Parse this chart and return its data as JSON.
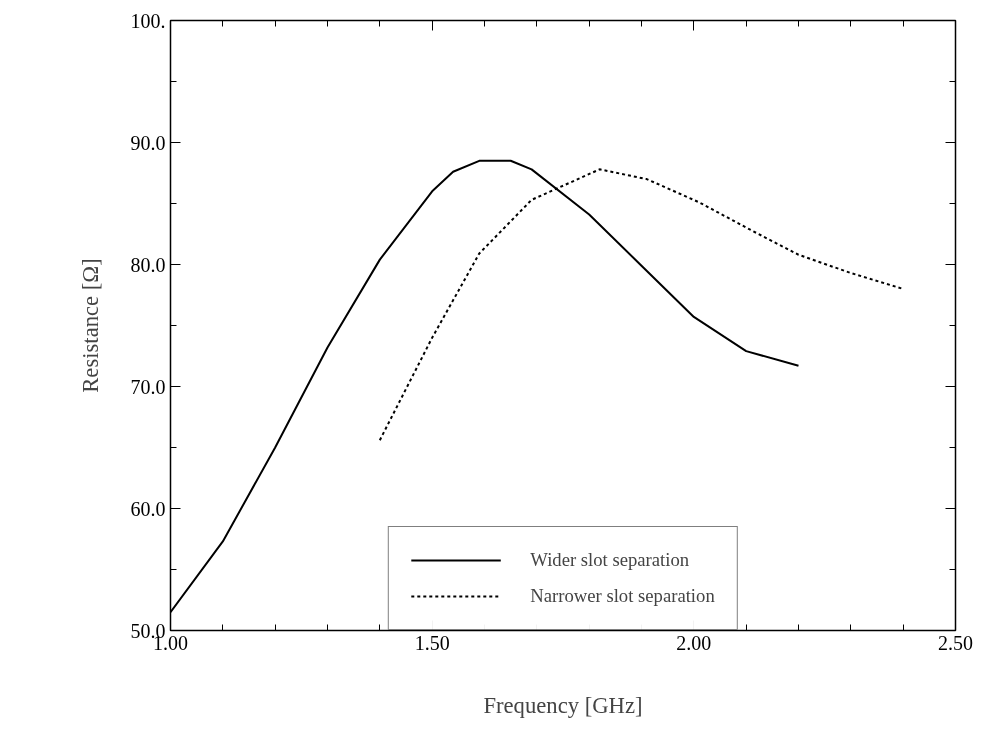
{
  "chart_data": {
    "type": "line",
    "xlabel": "Frequency [GHz]",
    "ylabel": "Resistance [Ω]",
    "series": [
      {
        "name": "Wider slot separation",
        "color": "#000000",
        "line_style": "solid",
        "x": [
          1.0,
          1.1,
          1.2,
          1.3,
          1.4,
          1.5,
          1.54,
          1.59,
          1.65,
          1.69,
          1.8,
          1.9,
          2.0,
          2.1,
          2.2
        ],
        "values": [
          51.5,
          57.3,
          65.0,
          73.2,
          80.4,
          86.0,
          87.6,
          88.5,
          88.5,
          87.8,
          84.1,
          79.9,
          75.7,
          72.9,
          71.7
        ]
      },
      {
        "name": "Narrower slot separation",
        "color": "#000000",
        "line_style": "dotted",
        "x": [
          1.4,
          1.5,
          1.59,
          1.69,
          1.82,
          1.91,
          2.01,
          2.11,
          2.2,
          2.3,
          2.4
        ],
        "values": [
          65.6,
          74.0,
          80.9,
          85.3,
          87.8,
          87.0,
          85.1,
          82.8,
          80.8,
          79.3,
          78.0
        ]
      }
    ],
    "xlim": [
      1.0,
      2.5
    ],
    "xticks": [
      {
        "value": 1.0,
        "label": "1.00"
      },
      {
        "value": 1.1,
        "label": null
      },
      {
        "value": 1.2,
        "label": null
      },
      {
        "value": 1.3,
        "label": null
      },
      {
        "value": 1.4,
        "label": null
      },
      {
        "value": 1.5,
        "label": "1.50"
      },
      {
        "value": 1.6,
        "label": null
      },
      {
        "value": 1.7,
        "label": null
      },
      {
        "value": 1.8,
        "label": null
      },
      {
        "value": 1.9,
        "label": null
      },
      {
        "value": 2.0,
        "label": "2.00"
      },
      {
        "value": 2.1,
        "label": null
      },
      {
        "value": 2.2,
        "label": null
      },
      {
        "value": 2.3,
        "label": null
      },
      {
        "value": 2.4,
        "label": null
      },
      {
        "value": 2.5,
        "label": "2.50"
      }
    ],
    "ylim": [
      50,
      100
    ],
    "yticks": [
      {
        "value": 50,
        "label": "50.0"
      },
      {
        "value": 55,
        "label": null
      },
      {
        "value": 60,
        "label": "60.0"
      },
      {
        "value": 65,
        "label": null
      },
      {
        "value": 70,
        "label": "70.0"
      },
      {
        "value": 75,
        "label": null
      },
      {
        "value": 80,
        "label": "80.0"
      },
      {
        "value": 85,
        "label": null
      },
      {
        "value": 90,
        "label": "90.0"
      },
      {
        "value": 95,
        "label": null
      },
      {
        "value": 100,
        "label": "100."
      }
    ],
    "grid": false,
    "legend": "bottom",
    "marker": "none"
  }
}
